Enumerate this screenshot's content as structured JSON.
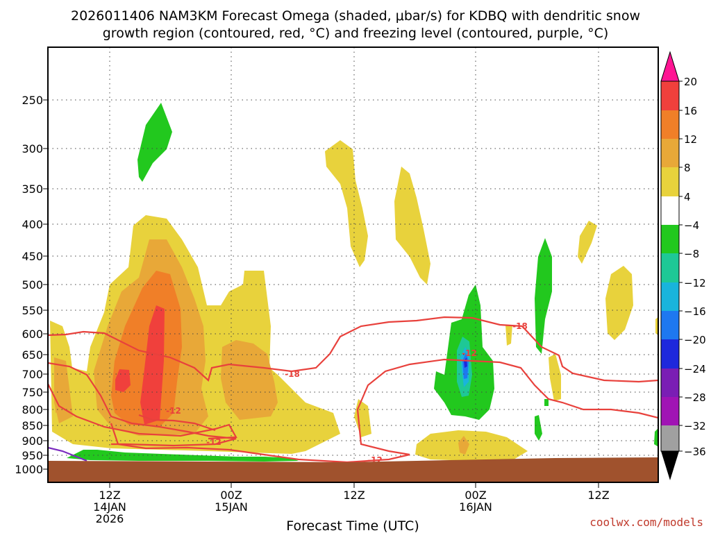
{
  "title_line1": "2026011406 NAM3KM Forecast Omega (shaded, μbar/s) for KDBQ with dendritic snow",
  "title_line2": "growth region (contoured, red, °C) and freezing level (contoured, purple, °C)",
  "xlabel": "Forecast Time (UTC)",
  "credit": "coolwx.com/models",
  "colors": {
    "terrain": "#a0522d",
    "dendritic_contour": "#e8413c",
    "freezing_contour": "#7b2cbf"
  },
  "chart_data": {
    "type": "heatmap",
    "y_scale": "pressure (log)",
    "y_ticks": [
      "250",
      "300",
      "350",
      "400",
      "450",
      "500",
      "550",
      "600",
      "650",
      "700",
      "750",
      "800",
      "850",
      "900",
      "950",
      "1000"
    ],
    "x_ticks": [
      {
        "line1": "12Z",
        "line2": "14JAN",
        "line3": "2026"
      },
      {
        "line1": "00Z",
        "line2": "15JAN",
        "line3": ""
      },
      {
        "line1": "12Z",
        "line2": "",
        "line3": ""
      },
      {
        "line1": "00Z",
        "line2": "16JAN",
        "line3": ""
      },
      {
        "line1": "12Z",
        "line2": "",
        "line3": ""
      }
    ],
    "grid": "dotted",
    "colorbar": {
      "labels": [
        "20",
        "16",
        "12",
        "8",
        "4",
        "−4",
        "−8",
        "−12",
        "−16",
        "−20",
        "−24",
        "−28",
        "−32",
        "−36"
      ],
      "colors": [
        "#ff1493",
        "#f0403c",
        "#f07f28",
        "#e8a838",
        "#e8d23c",
        "#ffffff",
        "#22c81e",
        "#1ec896",
        "#19b4dc",
        "#1e78f0",
        "#1e28dc",
        "#7a1eb4",
        "#a014b4",
        "#a0a0a0",
        "#000000"
      ]
    },
    "contour_labels": {
      "dendritic": [
        "-18",
        "-18",
        "-12",
        "-12",
        "-12",
        "-12"
      ]
    }
  }
}
